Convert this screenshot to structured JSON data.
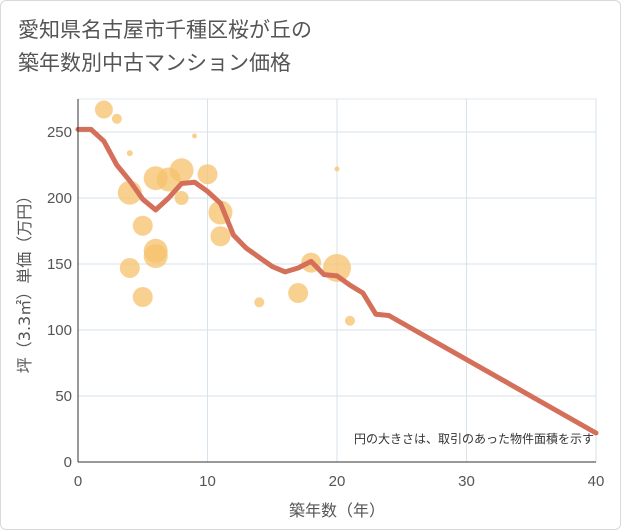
{
  "title": "愛知県名古屋市千種区桜が丘の\n築年数別中古マンション価格",
  "chart_data": {
    "type": "scatter",
    "title": "愛知県名古屋市千種区桜が丘の 築年数別中古マンション価格",
    "xlabel": "築年数（年）",
    "ylabel": "坪（3.3㎡）単価（万円）",
    "xlim": [
      0,
      40
    ],
    "ylim": [
      0,
      275
    ],
    "xticks": [
      0,
      10,
      20,
      30,
      40
    ],
    "yticks": [
      0,
      50,
      100,
      150,
      200,
      250
    ],
    "grid": true,
    "note": "円の大きさは、取引のあった物件面積を示す",
    "colors": {
      "bubble": "#f5c16c",
      "line": "#d4705a",
      "grid": "#d7e2ea"
    },
    "bubble_size_encodes": "area",
    "points": [
      {
        "x": 2,
        "y": 267,
        "s": 9
      },
      {
        "x": 3,
        "y": 260,
        "s": 5
      },
      {
        "x": 4,
        "y": 234,
        "s": 3
      },
      {
        "x": 4,
        "y": 204,
        "s": 12
      },
      {
        "x": 4,
        "y": 147,
        "s": 10
      },
      {
        "x": 5,
        "y": 179,
        "s": 10
      },
      {
        "x": 5,
        "y": 125,
        "s": 10
      },
      {
        "x": 6,
        "y": 215,
        "s": 12
      },
      {
        "x": 6,
        "y": 160,
        "s": 12
      },
      {
        "x": 6,
        "y": 156,
        "s": 12
      },
      {
        "x": 7,
        "y": 214,
        "s": 12
      },
      {
        "x": 8,
        "y": 221,
        "s": 12
      },
      {
        "x": 8,
        "y": 200,
        "s": 7
      },
      {
        "x": 9,
        "y": 247,
        "s": 2.5
      },
      {
        "x": 10,
        "y": 218,
        "s": 10
      },
      {
        "x": 11,
        "y": 189,
        "s": 12
      },
      {
        "x": 11,
        "y": 171,
        "s": 10
      },
      {
        "x": 14,
        "y": 121,
        "s": 5
      },
      {
        "x": 17,
        "y": 128,
        "s": 10
      },
      {
        "x": 18,
        "y": 151,
        "s": 10
      },
      {
        "x": 20,
        "y": 222,
        "s": 2.5
      },
      {
        "x": 20,
        "y": 147,
        "s": 14
      },
      {
        "x": 21,
        "y": 107,
        "s": 5
      }
    ],
    "trend_line": {
      "x": [
        0,
        1,
        2,
        3,
        4,
        5,
        6,
        7,
        8,
        9,
        10,
        11,
        12,
        13,
        14,
        15,
        16,
        17,
        18,
        19,
        20,
        21,
        22,
        23,
        24,
        40
      ],
      "y": [
        252,
        252,
        243,
        225,
        213,
        199,
        191,
        200,
        211,
        212,
        205,
        196,
        172,
        162,
        155,
        148,
        144,
        147,
        152,
        142,
        141,
        134,
        128,
        112,
        111,
        22
      ]
    }
  }
}
